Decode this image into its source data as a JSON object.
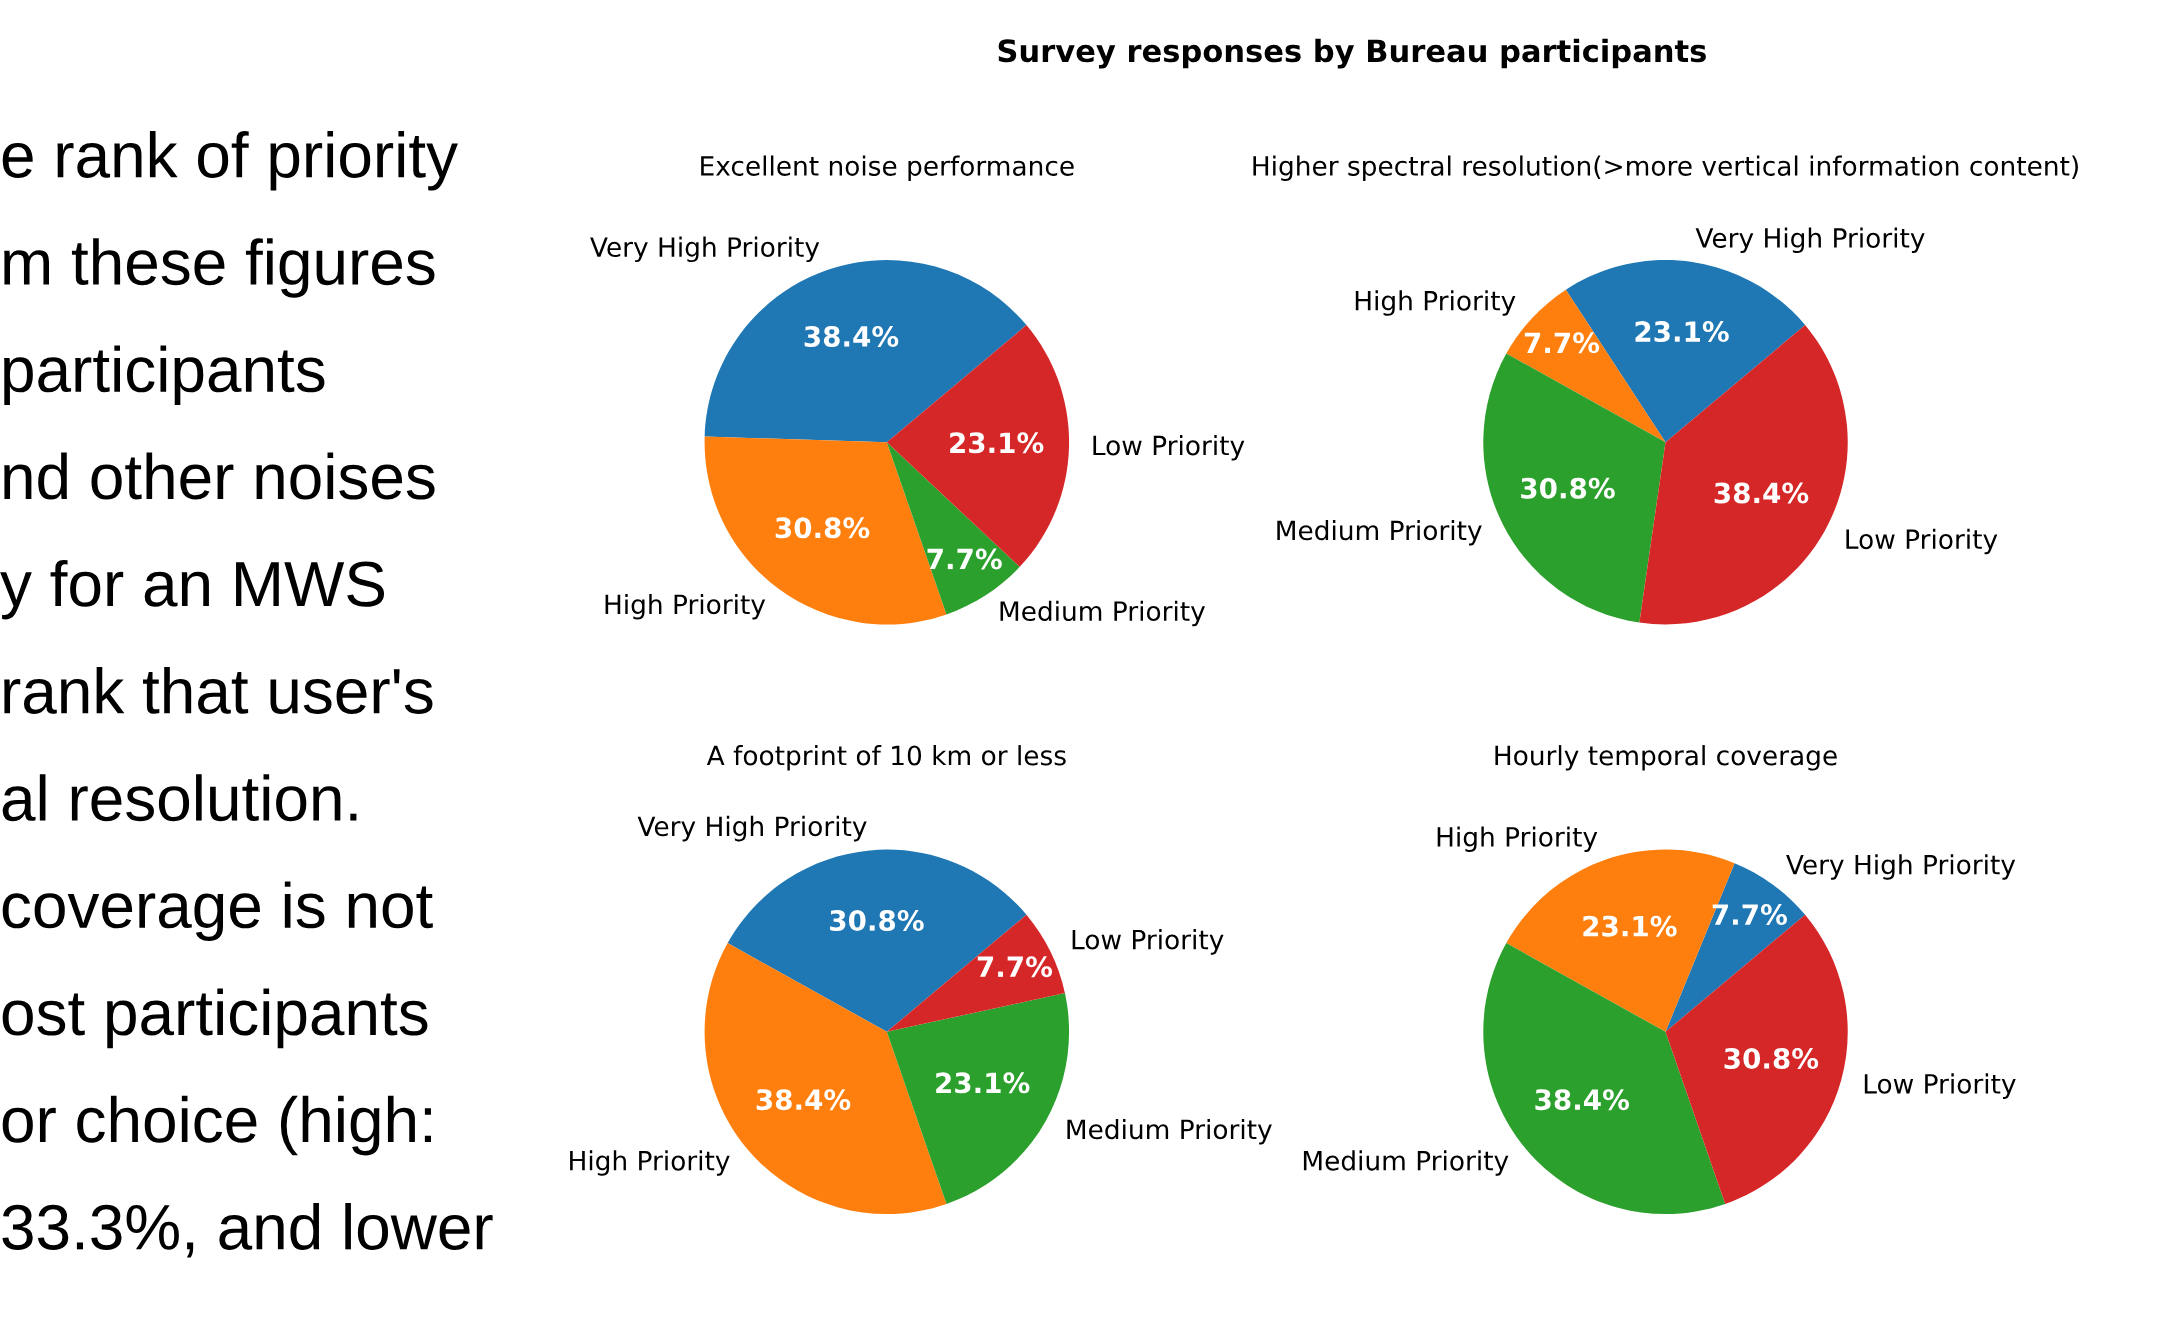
{
  "chart_data": [
    {
      "type": "other",
      "annotations": [
        "e rank of priority",
        "m these figures",
        "participants",
        "nd other noises",
        "y for an MWS",
        "rank that user's",
        "al resolution.",
        "coverage is not",
        "ost participants",
        "or choice (high:",
        "33.3%, and lower"
      ]
    },
    {
      "type": "other",
      "title": "Survey responses by Bureau participants"
    },
    {
      "type": "pie",
      "title": "Excellent noise performance",
      "categories": [
        "Very High Priority",
        "High Priority",
        "Medium Priority",
        "Low Priority"
      ],
      "values": [
        38.4,
        30.8,
        7.7,
        23.1
      ],
      "colors": [
        "#1f77b4",
        "#ff7f0e",
        "#2ca02c",
        "#d62728"
      ],
      "value_labels": [
        "38.4%",
        "30.8%",
        "7.7%",
        "23.1%"
      ],
      "legend": false
    },
    {
      "type": "pie",
      "title": "Higher spectral resolution(>more vertical information content)",
      "categories": [
        "Very High Priority",
        "High Priority",
        "Medium Priority",
        "Low Priority"
      ],
      "values": [
        23.1,
        7.7,
        30.8,
        38.4
      ],
      "colors": [
        "#1f77b4",
        "#ff7f0e",
        "#2ca02c",
        "#d62728"
      ],
      "value_labels": [
        "23.1%",
        "7.7%",
        "30.8%",
        "38.4%"
      ],
      "legend": false
    },
    {
      "type": "pie",
      "title": "A footprint of 10 km or less",
      "categories": [
        "Very High Priority",
        "High Priority",
        "Medium Priority",
        "Low Priority"
      ],
      "values": [
        30.8,
        38.4,
        23.1,
        7.7
      ],
      "colors": [
        "#1f77b4",
        "#ff7f0e",
        "#2ca02c",
        "#d62728"
      ],
      "value_labels": [
        "30.8%",
        "38.4%",
        "23.1%",
        "7.7%"
      ],
      "legend": false
    },
    {
      "type": "pie",
      "title": "Hourly temporal coverage",
      "categories": [
        "Very High Priority",
        "High Priority",
        "Medium Priority",
        "Low Priority"
      ],
      "values": [
        7.7,
        23.1,
        38.4,
        30.8
      ],
      "colors": [
        "#1f77b4",
        "#ff7f0e",
        "#2ca02c",
        "#d62728"
      ],
      "value_labels": [
        "7.7%",
        "23.1%",
        "38.4%",
        "30.8%"
      ],
      "legend": false
    }
  ]
}
